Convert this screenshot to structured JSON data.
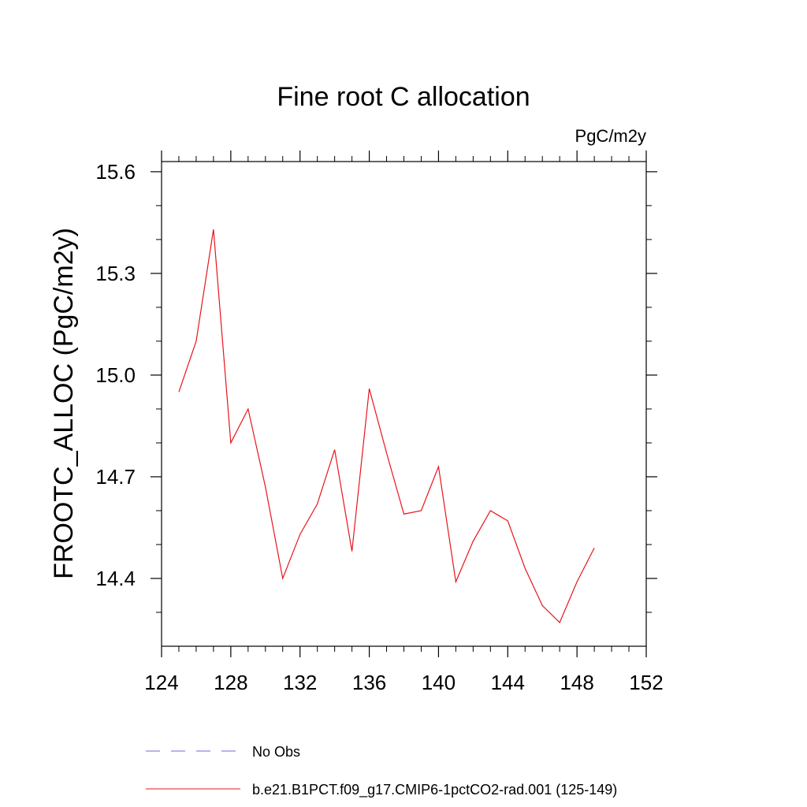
{
  "chart_data": {
    "type": "line",
    "title": "Fine root C allocation",
    "units_label": "PgC/m2y",
    "ylabel": "FROOTC_ALLOC  (PgC/m2y)",
    "xlabel": "",
    "xlim": [
      124,
      152
    ],
    "ylim": [
      14.2,
      15.63
    ],
    "x_ticks": [
      124,
      128,
      132,
      136,
      140,
      144,
      148,
      152
    ],
    "y_ticks": [
      14.4,
      14.7,
      15.0,
      15.3,
      15.6
    ],
    "x_tick_labels": [
      "124",
      "128",
      "132",
      "136",
      "140",
      "144",
      "148",
      "152"
    ],
    "y_tick_labels": [
      "14.4",
      "14.7",
      "15.0",
      "15.3",
      "15.6"
    ],
    "series": [
      {
        "name": "b.e21.B1PCT.f09_g17.CMIP6-1pctCO2-rad.001 (125-149)",
        "color": "#e8141c",
        "style": "solid",
        "x": [
          125,
          126,
          127,
          128,
          129,
          130,
          131,
          132,
          133,
          134,
          135,
          136,
          137,
          138,
          139,
          140,
          141,
          142,
          143,
          144,
          145,
          146,
          147,
          148,
          149
        ],
        "y": [
          14.95,
          15.1,
          15.43,
          14.8,
          14.9,
          14.67,
          14.4,
          14.53,
          14.62,
          14.78,
          14.48,
          14.96,
          14.77,
          14.59,
          14.6,
          14.73,
          14.39,
          14.51,
          14.6,
          14.57,
          14.43,
          14.32,
          14.27,
          14.39,
          14.49
        ]
      }
    ],
    "legend": {
      "placement": "bottom",
      "entries": [
        {
          "label": "No Obs",
          "color": "#6b6bd6",
          "style": "dashed"
        },
        {
          "label": "b.e21.B1PCT.f09_g17.CMIP6-1pctCO2-rad.001 (125-149)",
          "color": "#e8141c",
          "style": "solid"
        }
      ]
    },
    "grid": false
  }
}
